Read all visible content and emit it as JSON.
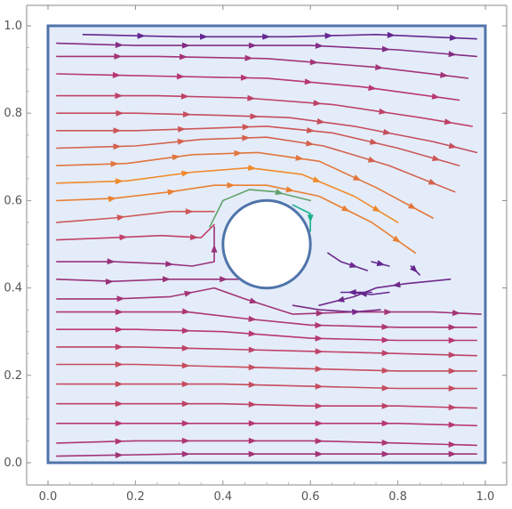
{
  "chart_data": {
    "type": "streamplot",
    "title": "",
    "xlabel": "",
    "ylabel": "",
    "xlim": [
      0.0,
      1.0
    ],
    "ylim": [
      0.0,
      1.0
    ],
    "x_ticks": [
      "0.0",
      "0.2",
      "0.4",
      "0.6",
      "0.8",
      "1.0"
    ],
    "y_ticks": [
      "0.0",
      "0.2",
      "0.4",
      "0.6",
      "0.8",
      "1.0"
    ],
    "domain": {
      "xmin": 0.0,
      "xmax": 1.0,
      "ymin": 0.0,
      "ymax": 1.0
    },
    "obstacle": {
      "shape": "circle",
      "center": [
        0.5,
        0.5
      ],
      "radius": 0.1
    },
    "flow_direction": "left-to-right",
    "recirculation_region": "downstream wake behind circle (x 0.6-1.0, y 0.35-0.55)",
    "color_scale": "speed: purple (slow) to orange (fast), teal near max",
    "colors": {
      "domain_fill": "#e4ecf9",
      "domain_border": "#4f74aa",
      "obstacle_border": "#4f74aa",
      "slow": "#5a2594",
      "medium": "#b8386f",
      "fast": "#f08a2c",
      "max": "#1ab08a"
    },
    "streamlines": [
      {
        "points": [
          [
            0.08,
            0.98
          ],
          [
            0.3,
            0.975
          ],
          [
            0.55,
            0.975
          ],
          [
            0.75,
            0.98
          ],
          [
            0.98,
            0.97
          ]
        ],
        "speed": 0.05
      },
      {
        "points": [
          [
            0.02,
            0.96
          ],
          [
            0.2,
            0.955
          ],
          [
            0.4,
            0.955
          ],
          [
            0.6,
            0.955
          ],
          [
            0.8,
            0.945
          ],
          [
            0.98,
            0.93
          ]
        ],
        "speed": 0.2
      },
      {
        "points": [
          [
            0.02,
            0.93
          ],
          [
            0.25,
            0.93
          ],
          [
            0.5,
            0.925
          ],
          [
            0.75,
            0.905
          ],
          [
            0.96,
            0.88
          ]
        ],
        "speed": 0.35
      },
      {
        "points": [
          [
            0.02,
            0.89
          ],
          [
            0.25,
            0.885
          ],
          [
            0.5,
            0.88
          ],
          [
            0.72,
            0.86
          ],
          [
            0.94,
            0.83
          ]
        ],
        "speed": 0.45
      },
      {
        "points": [
          [
            0.02,
            0.84
          ],
          [
            0.25,
            0.84
          ],
          [
            0.45,
            0.835
          ],
          [
            0.65,
            0.82
          ],
          [
            0.85,
            0.79
          ],
          [
            0.97,
            0.77
          ]
        ],
        "speed": 0.5
      },
      {
        "points": [
          [
            0.02,
            0.8
          ],
          [
            0.2,
            0.8
          ],
          [
            0.4,
            0.795
          ],
          [
            0.55,
            0.79
          ],
          [
            0.7,
            0.77
          ],
          [
            0.88,
            0.735
          ],
          [
            0.98,
            0.71
          ]
        ],
        "speed": 0.55
      },
      {
        "points": [
          [
            0.02,
            0.76
          ],
          [
            0.2,
            0.76
          ],
          [
            0.35,
            0.765
          ],
          [
            0.5,
            0.77
          ],
          [
            0.65,
            0.755
          ],
          [
            0.8,
            0.72
          ],
          [
            0.94,
            0.68
          ]
        ],
        "speed": 0.6
      },
      {
        "points": [
          [
            0.02,
            0.72
          ],
          [
            0.2,
            0.725
          ],
          [
            0.35,
            0.74
          ],
          [
            0.5,
            0.745
          ],
          [
            0.63,
            0.725
          ],
          [
            0.78,
            0.68
          ],
          [
            0.93,
            0.62
          ]
        ],
        "speed": 0.65
      },
      {
        "points": [
          [
            0.02,
            0.68
          ],
          [
            0.18,
            0.685
          ],
          [
            0.33,
            0.705
          ],
          [
            0.48,
            0.71
          ],
          [
            0.62,
            0.69
          ],
          [
            0.75,
            0.63
          ],
          [
            0.88,
            0.56
          ]
        ],
        "speed": 0.75
      },
      {
        "points": [
          [
            0.02,
            0.64
          ],
          [
            0.18,
            0.645
          ],
          [
            0.33,
            0.665
          ],
          [
            0.46,
            0.675
          ],
          [
            0.58,
            0.66
          ],
          [
            0.7,
            0.61
          ],
          [
            0.8,
            0.55
          ]
        ],
        "speed": 0.85
      },
      {
        "points": [
          [
            0.02,
            0.6
          ],
          [
            0.15,
            0.605
          ],
          [
            0.28,
            0.62
          ],
          [
            0.38,
            0.635
          ],
          [
            0.5,
            0.635
          ],
          [
            0.62,
            0.61
          ],
          [
            0.74,
            0.55
          ],
          [
            0.84,
            0.48
          ]
        ],
        "speed": 0.8
      },
      {
        "points": [
          [
            0.37,
            0.54
          ],
          [
            0.4,
            0.6
          ],
          [
            0.46,
            0.625
          ],
          [
            0.52,
            0.62
          ],
          [
            0.6,
            0.6
          ]
        ],
        "speed": 0.95
      },
      {
        "points": [
          [
            0.56,
            0.59
          ],
          [
            0.6,
            0.57
          ],
          [
            0.6,
            0.53
          ]
        ],
        "speed": 1.0
      },
      {
        "points": [
          [
            0.02,
            0.55
          ],
          [
            0.15,
            0.56
          ],
          [
            0.28,
            0.575
          ],
          [
            0.38,
            0.575
          ]
        ],
        "speed": 0.6
      },
      {
        "points": [
          [
            0.02,
            0.51
          ],
          [
            0.15,
            0.515
          ],
          [
            0.26,
            0.52
          ],
          [
            0.35,
            0.515
          ],
          [
            0.38,
            0.545
          ]
        ],
        "speed": 0.5
      },
      {
        "points": [
          [
            0.02,
            0.46
          ],
          [
            0.15,
            0.46
          ],
          [
            0.27,
            0.455
          ],
          [
            0.33,
            0.45
          ],
          [
            0.38,
            0.46
          ],
          [
            0.38,
            0.54
          ]
        ],
        "speed": 0.3
      },
      {
        "points": [
          [
            0.02,
            0.42
          ],
          [
            0.15,
            0.415
          ],
          [
            0.27,
            0.42
          ],
          [
            0.36,
            0.42
          ],
          [
            0.45,
            0.42
          ]
        ],
        "speed": 0.3
      },
      {
        "points": [
          [
            0.02,
            0.375
          ],
          [
            0.15,
            0.375
          ],
          [
            0.28,
            0.38
          ],
          [
            0.38,
            0.4
          ],
          [
            0.45,
            0.375
          ],
          [
            0.56,
            0.34
          ],
          [
            0.7,
            0.345
          ],
          [
            0.88,
            0.345
          ],
          [
            0.99,
            0.34
          ]
        ],
        "speed": 0.35
      },
      {
        "points": [
          [
            0.02,
            0.345
          ],
          [
            0.18,
            0.345
          ],
          [
            0.32,
            0.345
          ],
          [
            0.45,
            0.33
          ],
          [
            0.6,
            0.315
          ],
          [
            0.8,
            0.31
          ],
          [
            0.98,
            0.31
          ]
        ],
        "speed": 0.4
      },
      {
        "points": [
          [
            0.02,
            0.305
          ],
          [
            0.2,
            0.305
          ],
          [
            0.4,
            0.3
          ],
          [
            0.6,
            0.285
          ],
          [
            0.8,
            0.28
          ],
          [
            0.98,
            0.28
          ]
        ],
        "speed": 0.45
      },
      {
        "points": [
          [
            0.02,
            0.265
          ],
          [
            0.2,
            0.265
          ],
          [
            0.4,
            0.26
          ],
          [
            0.6,
            0.255
          ],
          [
            0.8,
            0.25
          ],
          [
            0.98,
            0.245
          ]
        ],
        "speed": 0.5
      },
      {
        "points": [
          [
            0.02,
            0.225
          ],
          [
            0.2,
            0.225
          ],
          [
            0.4,
            0.22
          ],
          [
            0.6,
            0.215
          ],
          [
            0.8,
            0.21
          ],
          [
            0.98,
            0.21
          ]
        ],
        "speed": 0.55
      },
      {
        "points": [
          [
            0.02,
            0.18
          ],
          [
            0.2,
            0.18
          ],
          [
            0.4,
            0.18
          ],
          [
            0.6,
            0.175
          ],
          [
            0.8,
            0.17
          ],
          [
            0.98,
            0.17
          ]
        ],
        "speed": 0.55
      },
      {
        "points": [
          [
            0.02,
            0.135
          ],
          [
            0.2,
            0.135
          ],
          [
            0.4,
            0.135
          ],
          [
            0.6,
            0.13
          ],
          [
            0.8,
            0.13
          ],
          [
            0.98,
            0.125
          ]
        ],
        "speed": 0.5
      },
      {
        "points": [
          [
            0.02,
            0.09
          ],
          [
            0.2,
            0.09
          ],
          [
            0.4,
            0.09
          ],
          [
            0.6,
            0.09
          ],
          [
            0.8,
            0.09
          ],
          [
            0.98,
            0.085
          ]
        ],
        "speed": 0.45
      },
      {
        "points": [
          [
            0.02,
            0.045
          ],
          [
            0.2,
            0.05
          ],
          [
            0.4,
            0.05
          ],
          [
            0.6,
            0.05
          ],
          [
            0.8,
            0.045
          ],
          [
            0.98,
            0.04
          ]
        ],
        "speed": 0.4
      },
      {
        "points": [
          [
            0.02,
            0.015
          ],
          [
            0.3,
            0.02
          ],
          [
            0.6,
            0.02
          ],
          [
            0.98,
            0.02
          ]
        ],
        "speed": 0.35
      },
      {
        "points": [
          [
            0.92,
            0.42
          ],
          [
            0.82,
            0.41
          ],
          [
            0.75,
            0.4
          ],
          [
            0.7,
            0.38
          ],
          [
            0.62,
            0.36
          ]
        ],
        "speed": 0.1
      },
      {
        "points": [
          [
            0.74,
            0.39
          ],
          [
            0.7,
            0.39
          ],
          [
            0.67,
            0.39
          ]
        ],
        "speed": 0.05
      },
      {
        "points": [
          [
            0.78,
            0.39
          ],
          [
            0.74,
            0.385
          ],
          [
            0.69,
            0.39
          ]
        ],
        "speed": 0.05
      },
      {
        "points": [
          [
            0.64,
            0.48
          ],
          [
            0.67,
            0.46
          ],
          [
            0.7,
            0.45
          ],
          [
            0.73,
            0.44
          ]
        ],
        "speed": 0.08
      },
      {
        "points": [
          [
            0.74,
            0.46
          ],
          [
            0.78,
            0.45
          ]
        ],
        "speed": 0.05
      },
      {
        "points": [
          [
            0.56,
            0.36
          ],
          [
            0.62,
            0.35
          ],
          [
            0.7,
            0.345
          ],
          [
            0.76,
            0.35
          ]
        ],
        "speed": 0.15
      },
      {
        "points": [
          [
            0.83,
            0.45
          ],
          [
            0.85,
            0.43
          ]
        ],
        "speed": 0.05
      }
    ]
  }
}
